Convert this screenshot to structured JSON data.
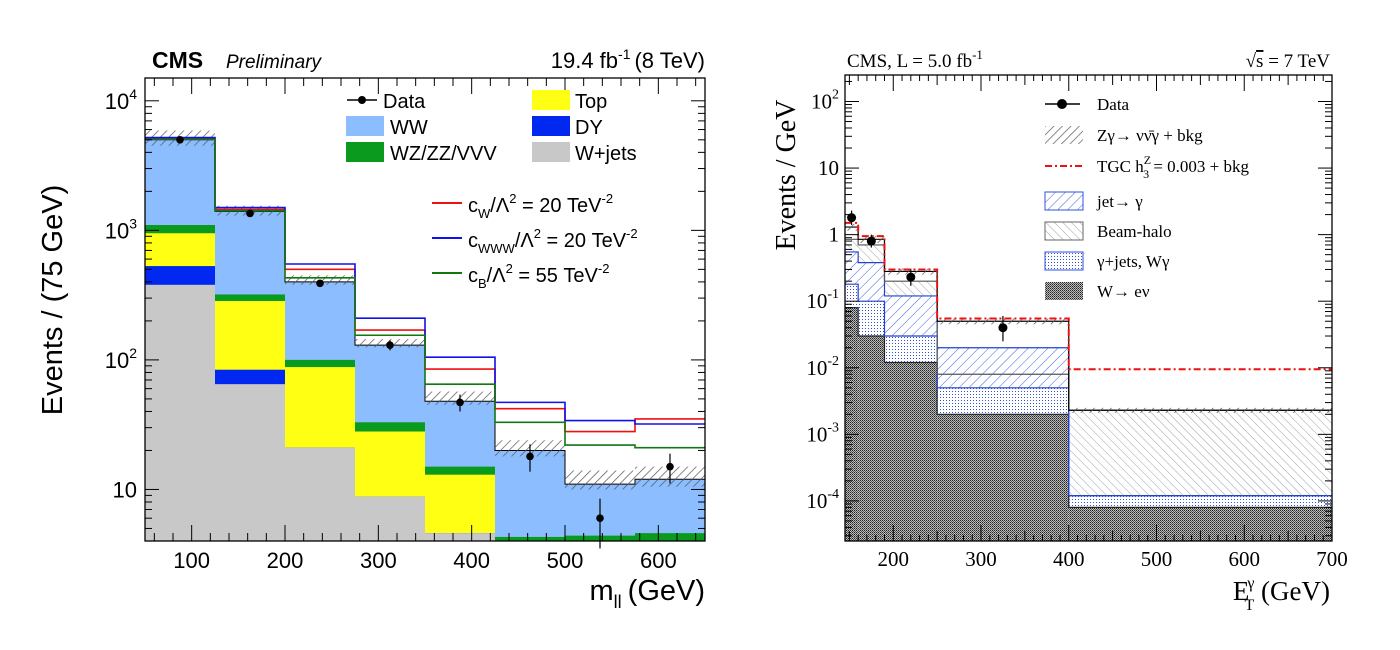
{
  "chart_data": [
    {
      "type": "bar",
      "header": {
        "experiment": "CMS",
        "status": "Preliminary",
        "lumi": "19.4 fb",
        "lumi_sup": "-1",
        "energy": "(8 TeV)"
      },
      "xlabel": {
        "main": "m",
        "sub": "ll",
        "unit": "(GeV)"
      },
      "ylabel": "Events / (75 GeV)",
      "xlim": [
        50,
        650
      ],
      "ylim": [
        4,
        15000
      ],
      "yscale": "log",
      "x_ticks": [
        "100",
        "200",
        "300",
        "400",
        "500",
        "600"
      ],
      "y_ticks": [
        {
          "base": "10",
          "exp": "4",
          "value": 10000
        },
        {
          "base": "10",
          "exp": "3",
          "value": 1000
        },
        {
          "base": "10",
          "exp": "2",
          "value": 100
        },
        {
          "base": "10",
          "exp": "",
          "value": 10
        }
      ],
      "bin_edges": [
        50,
        125,
        200,
        275,
        350,
        425,
        500,
        575,
        650
      ],
      "stack_colors": {
        "W+jets": "#c8c8c8",
        "DY": "#0028f0",
        "Top": "#ffff14",
        "WZ/ZZ/VVV": "#0a9a1e",
        "WW": "#8cbeff"
      },
      "stack": [
        {
          "name": "W+jets",
          "cumulative": [
            380,
            65,
            21,
            8.8,
            4.6,
            4,
            4,
            4
          ]
        },
        {
          "name": "DY",
          "cumulative": [
            530,
            84,
            21,
            8.8,
            4.6,
            4,
            4,
            4
          ]
        },
        {
          "name": "Top",
          "cumulative": [
            950,
            285,
            88,
            28,
            13,
            4,
            4,
            4
          ]
        },
        {
          "name": "WZ/ZZ/VVV",
          "cumulative": [
            1100,
            320,
            100,
            33,
            15,
            4.3,
            4.4,
            4.6
          ]
        },
        {
          "name": "WW",
          "cumulative": [
            5000,
            1400,
            400,
            130,
            48,
            20,
            11,
            12
          ]
        }
      ],
      "uncertainty": {
        "low": [
          4500,
          1300,
          380,
          125,
          45,
          18,
          10,
          10.5
        ],
        "high": [
          5900,
          1550,
          450,
          145,
          57,
          24,
          14,
          15
        ]
      },
      "signals": [
        {
          "name": "c_W",
          "label_main": "c",
          "label_sub": "W",
          "label_rest": "/Λ",
          "label_sup2": "2",
          "label_eq": " = 20 TeV",
          "label_sup": "-2",
          "color": "#ee1111",
          "values": [
            5100,
            1450,
            500,
            170,
            85,
            42,
            28,
            35
          ]
        },
        {
          "name": "c_WWW",
          "label_main": "c",
          "label_sub": "WWW",
          "label_rest": "/Λ",
          "label_sup2": "2",
          "label_eq": " = 20 TeV",
          "label_sup": "-2",
          "color": "#1111ee",
          "values": [
            5200,
            1500,
            550,
            210,
            105,
            47,
            34,
            32
          ]
        },
        {
          "name": "c_B",
          "label_main": "c",
          "label_sub": "B",
          "label_rest": "/Λ",
          "label_sup2": "2",
          "label_eq": " = 55 TeV",
          "label_sup": "-2",
          "color": "#117711",
          "values": [
            5050,
            1420,
            430,
            155,
            65,
            33,
            22,
            21
          ]
        }
      ],
      "data_points": [
        {
          "x": 87.5,
          "y": 5000,
          "err": 70
        },
        {
          "x": 162.5,
          "y": 1350,
          "err": 37
        },
        {
          "x": 237.5,
          "y": 390,
          "err": 20
        },
        {
          "x": 312.5,
          "y": 130,
          "err": 11.5
        },
        {
          "x": 387.5,
          "y": 47,
          "err": 7
        },
        {
          "x": 462.5,
          "y": 18,
          "err": 4.3
        },
        {
          "x": 537.5,
          "y": 6,
          "err": 2.5
        },
        {
          "x": 612.5,
          "y": 15,
          "err": 3.9
        }
      ],
      "legend": {
        "data": "Data",
        "top": "Top",
        "ww": "WW",
        "dy": "DY",
        "vv": "WZ/ZZ/VVV",
        "wjets": "W+jets"
      }
    },
    {
      "type": "bar",
      "header": {
        "left_main": "CMS, L = 5.0 fb",
        "left_sup": "-1",
        "right_root": "√",
        "right_s": "s",
        "right_rest": " = 7 TeV"
      },
      "xlabel": {
        "main": "E",
        "sup": "γ",
        "sub": "T",
        "unit": " (GeV)"
      },
      "ylabel": "Events / GeV",
      "xlim": [
        145,
        700
      ],
      "ylim": [
        2.5e-05,
        250
      ],
      "yscale": "log",
      "x_ticks": [
        "200",
        "300",
        "400",
        "500",
        "600",
        "700"
      ],
      "y_ticks": [
        {
          "base": "10",
          "exp": "2",
          "value": 100
        },
        {
          "base": "10",
          "exp": "",
          "value": 10
        },
        {
          "base": "1",
          "exp": "",
          "value": 1
        },
        {
          "base": "10",
          "exp": "-1",
          "value": 0.1
        },
        {
          "base": "10",
          "exp": "-2",
          "value": 0.01
        },
        {
          "base": "10",
          "exp": "-3",
          "value": 0.001
        },
        {
          "base": "10",
          "exp": "-4",
          "value": 0.0001
        }
      ],
      "bin_edges": [
        145,
        160,
        190,
        250,
        400,
        700
      ],
      "stack": [
        {
          "name": "W→eν",
          "cumulative": [
            0.08,
            0.03,
            0.012,
            0.002,
            8e-05
          ]
        },
        {
          "name": "γ+jets, Wγ",
          "cumulative": [
            0.18,
            0.1,
            0.03,
            0.005,
            0.00012
          ]
        },
        {
          "name": "jet→γ",
          "cumulative": [
            0.55,
            0.38,
            0.12,
            0.02,
            0.00012
          ]
        },
        {
          "name": "Beam-halo",
          "cumulative": [
            0.85,
            0.7,
            0.2,
            0.008,
            0.0023
          ]
        },
        {
          "name": "Zγ→νν̄γ + bkg",
          "cumulative": [
            1.3,
            0.85,
            0.28,
            0.05,
            0.0023
          ]
        }
      ],
      "uncertainty": {
        "low": [
          1.15,
          0.75,
          0.25,
          0.045,
          0.0021
        ],
        "high": [
          1.45,
          0.95,
          0.31,
          0.055,
          0.0025
        ]
      },
      "tgc": {
        "color": "#ee1111",
        "values": [
          1.5,
          0.95,
          0.3,
          0.055,
          0.0095
        ]
      },
      "data_points": [
        {
          "x": 152.5,
          "y": 1.8,
          "lo": 1.4,
          "hi": 2.3
        },
        {
          "x": 175,
          "y": 0.8,
          "lo": 0.64,
          "hi": 1.0
        },
        {
          "x": 220,
          "y": 0.23,
          "lo": 0.17,
          "hi": 0.3
        },
        {
          "x": 325,
          "y": 0.04,
          "lo": 0.025,
          "hi": 0.06
        }
      ],
      "legend": {
        "data": "Data",
        "zg": "Zγ→ νν̄γ + bkg",
        "tgc_pre": "TGC h",
        "tgc_sup": "Z",
        "tgc_sub": "3",
        "tgc_rest": " = 0.003 + bkg",
        "jet": "jet→ γ",
        "halo": "Beam-halo",
        "gjets": "γ+jets, Wγ",
        "wen": "W→ eν"
      }
    }
  ]
}
